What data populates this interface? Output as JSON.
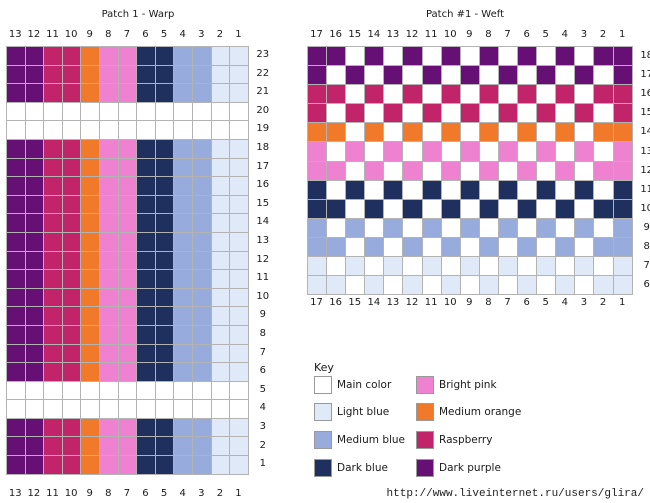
{
  "palette": {
    "W": "#ffffff",
    "L": "#dfe9f7",
    "M": "#97acdc",
    "D": "#20305e",
    "P": "#ef82d0",
    "O": "#f07a2a",
    "R": "#c2246a",
    "U": "#660f74"
  },
  "warp": {
    "title": "Patch 1 - Warp",
    "col_labels": [
      "13",
      "12",
      "11",
      "10",
      "9",
      "8",
      "7",
      "6",
      "5",
      "4",
      "3",
      "2",
      "1"
    ],
    "row_labels": [
      "23",
      "22",
      "21",
      "20",
      "19",
      "18",
      "17",
      "16",
      "15",
      "14",
      "13",
      "12",
      "11",
      "10",
      "9",
      "8",
      "7",
      "6",
      "5",
      "4",
      "3",
      "2",
      "1"
    ],
    "stripe": "UURROPPDDMMLL",
    "white_rows": [
      "20",
      "19",
      "5",
      "4"
    ]
  },
  "weft": {
    "title": "Patch #1 - Weft",
    "col_labels": [
      "17",
      "16",
      "15",
      "14",
      "13",
      "12",
      "11",
      "10",
      "9",
      "8",
      "7",
      "6",
      "5",
      "4",
      "3",
      "2",
      "1"
    ],
    "row_labels": [
      "18",
      "17",
      "16",
      "15",
      "14",
      "13",
      "12",
      "11",
      "10",
      "9",
      "8",
      "7",
      "6"
    ],
    "row_colors": [
      "U",
      "U",
      "R",
      "R",
      "O",
      "P",
      "P",
      "D",
      "D",
      "M",
      "M",
      "L",
      "L"
    ]
  },
  "key": {
    "title": "Key",
    "items": [
      {
        "label": "Main color",
        "color": "#ffffff"
      },
      {
        "label": "Bright pink",
        "color": "#ef82d0"
      },
      {
        "label": "Light blue",
        "color": "#dfe9f7"
      },
      {
        "label": "Medium orange",
        "color": "#f07a2a"
      },
      {
        "label": "Medium blue",
        "color": "#97acdc"
      },
      {
        "label": "Raspberry",
        "color": "#c2246a"
      },
      {
        "label": "Dark blue",
        "color": "#20305e"
      },
      {
        "label": "Dark purple",
        "color": "#660f74"
      }
    ]
  },
  "watermark": "http://www.liveinternet.ru/users/glira/"
}
